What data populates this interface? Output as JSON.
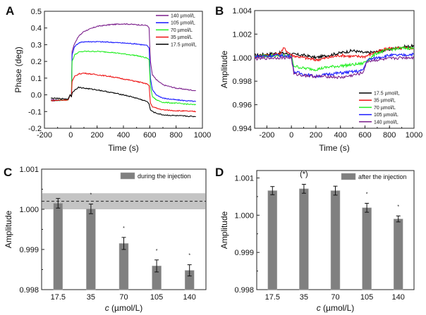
{
  "chart_data": [
    {
      "panel": "A",
      "type": "line",
      "xlabel": "Time (s)",
      "ylabel": "Phase (deg)",
      "xlim": [
        -200,
        1000
      ],
      "ylim": [
        -0.2,
        0.5
      ],
      "xticks": [
        -200,
        0,
        200,
        400,
        600,
        800,
        1000
      ],
      "yticks": [
        "-0.2",
        "-0.1",
        "0.0",
        "0.1",
        "0.2",
        "0.3",
        "0.4",
        "0.5"
      ],
      "legend_position": "top-right",
      "series": [
        {
          "name": "140 µmol/L",
          "color": "#7b1f8c",
          "x": [
            -150,
            -20,
            -5,
            5,
            10,
            30,
            60,
            100,
            200,
            300,
            400,
            500,
            580,
            595,
            605,
            620,
            650,
            700,
            800,
            950
          ],
          "y": [
            -0.03,
            -0.03,
            0.0,
            -0.01,
            0.26,
            0.31,
            0.35,
            0.38,
            0.41,
            0.42,
            0.425,
            0.42,
            0.415,
            0.4,
            0.2,
            0.12,
            0.09,
            0.06,
            0.04,
            0.025
          ]
        },
        {
          "name": "105 µmol/L",
          "color": "#1a1aff",
          "x": [
            -150,
            -20,
            -5,
            5,
            10,
            30,
            60,
            100,
            200,
            300,
            400,
            500,
            580,
            595,
            605,
            620,
            650,
            700,
            800,
            950
          ],
          "y": [
            -0.035,
            -0.03,
            0.0,
            -0.01,
            0.24,
            0.29,
            0.31,
            0.318,
            0.318,
            0.315,
            0.31,
            0.305,
            0.295,
            0.28,
            0.1,
            0.03,
            0.0,
            -0.02,
            -0.03,
            -0.04
          ]
        },
        {
          "name": "70 µmol/L",
          "color": "#22ee22",
          "x": [
            -150,
            -20,
            -5,
            5,
            10,
            30,
            60,
            100,
            200,
            300,
            400,
            500,
            580,
            595,
            605,
            620,
            650,
            700,
            800,
            950
          ],
          "y": [
            -0.035,
            -0.03,
            0.0,
            -0.01,
            0.2,
            0.24,
            0.255,
            0.26,
            0.26,
            0.255,
            0.245,
            0.235,
            0.22,
            0.21,
            0.05,
            -0.01,
            -0.03,
            -0.045,
            -0.05,
            -0.06
          ]
        },
        {
          "name": "35 µmol/L",
          "color": "#ee1111",
          "x": [
            -150,
            -20,
            -5,
            5,
            10,
            30,
            60,
            100,
            200,
            300,
            400,
            500,
            580,
            595,
            605,
            620,
            650,
            700,
            800,
            950
          ],
          "y": [
            -0.035,
            -0.03,
            0.0,
            -0.01,
            0.08,
            0.11,
            0.125,
            0.13,
            0.12,
            0.11,
            0.095,
            0.08,
            0.065,
            0.055,
            -0.05,
            -0.07,
            -0.08,
            -0.09,
            -0.095,
            -0.1
          ]
        },
        {
          "name": "17.5 µmol/L",
          "color": "#000000",
          "x": [
            -150,
            -20,
            -5,
            5,
            10,
            30,
            60,
            100,
            200,
            300,
            400,
            500,
            580,
            595,
            605,
            620,
            650,
            700,
            800,
            950
          ],
          "y": [
            -0.02,
            -0.025,
            0.0,
            -0.01,
            0.01,
            0.03,
            0.045,
            0.04,
            0.03,
            0.015,
            0.0,
            -0.02,
            -0.04,
            -0.055,
            -0.09,
            -0.1,
            -0.11,
            -0.12,
            -0.125,
            -0.13
          ]
        }
      ]
    },
    {
      "panel": "B",
      "type": "line",
      "xlabel": "Time (s)",
      "ylabel": "Amplitude",
      "xlim": [
        -300,
        1000
      ],
      "ylim": [
        0.994,
        1.004
      ],
      "xticks": [
        -200,
        0,
        200,
        400,
        600,
        800,
        1000
      ],
      "yticks": [
        "0.994",
        "0.996",
        "0.998",
        "1.000",
        "1.002",
        "1.004"
      ],
      "legend_position": "bottom-right",
      "series": [
        {
          "name": "17.5 µmol/L",
          "color": "#000000",
          "x": [
            -300,
            -100,
            0,
            100,
            200,
            300,
            400,
            500,
            600,
            700,
            800,
            900,
            1000
          ],
          "y": [
            1.0002,
            1.0004,
            1.0003,
            1.0002,
            1.0,
            1.0002,
            1.0004,
            1.0006,
            1.0004,
            1.0005,
            1.0007,
            1.0009,
            1.001
          ]
        },
        {
          "name": "35 µmol/L",
          "color": "#ee1111",
          "x": [
            -300,
            -100,
            -60,
            0,
            100,
            200,
            300,
            400,
            500,
            600,
            700,
            800,
            900,
            1000
          ],
          "y": [
            1.0001,
            1.0003,
            1.0008,
            1.0002,
            1.0,
            0.9998,
            1.0,
            1.0002,
            1.0001,
            1.0001,
            1.0005,
            1.0008,
            1.0008,
            1.0008
          ]
        },
        {
          "name": "70 µmol/L",
          "color": "#22ee22",
          "x": [
            -300,
            -100,
            0,
            20,
            100,
            200,
            300,
            400,
            500,
            580,
            620,
            700,
            800,
            900,
            1000
          ],
          "y": [
            1.0001,
            1.0002,
            1.0001,
            0.9993,
            0.9991,
            0.999,
            0.9992,
            0.9993,
            0.9994,
            0.9995,
            0.9998,
            1.0004,
            1.0007,
            1.0008,
            1.0008
          ]
        },
        {
          "name": "105 µmol/L",
          "color": "#1a1aff",
          "x": [
            -300,
            -100,
            0,
            20,
            100,
            200,
            300,
            400,
            500,
            580,
            620,
            700,
            800,
            900,
            1000
          ],
          "y": [
            1.0001,
            1.0002,
            1.0001,
            0.9988,
            0.9986,
            0.9984,
            0.9986,
            0.9987,
            0.9988,
            0.9989,
            0.9998,
            1.0,
            1.0002,
            1.0002,
            1.0003
          ]
        },
        {
          "name": "140 µmol/L",
          "color": "#7b1f8c",
          "x": [
            -300,
            -100,
            0,
            20,
            100,
            200,
            300,
            400,
            500,
            580,
            620,
            700,
            800,
            900,
            1000
          ],
          "y": [
            0.9999,
            1.0,
            1.0,
            0.9986,
            0.9985,
            0.9984,
            0.9984,
            0.9983,
            0.9985,
            0.9987,
            0.9997,
            0.9998,
            0.9999,
            1.0,
            1.0
          ]
        }
      ]
    },
    {
      "panel": "C",
      "type": "bar",
      "xlabel_italic": "c",
      "xlabel_rest": " (µmol/L)",
      "ylabel": "Amplitude",
      "categories": [
        "17.5",
        "35",
        "70",
        "105",
        "140"
      ],
      "values": [
        1.00015,
        1.00001,
        0.99915,
        0.99859,
        0.99848
      ],
      "errors": [
        0.00012,
        0.00012,
        0.00015,
        0.00015,
        0.00014
      ],
      "significance": [
        "",
        "*",
        "*",
        "*",
        "*"
      ],
      "ylim": [
        0.998,
        1.001
      ],
      "yticks": [
        "0.998",
        "0.999",
        "1.000",
        "1.001"
      ],
      "reference_line": 1.0002,
      "reference_band": [
        1.0,
        1.0004
      ],
      "legend": "during the injection",
      "legend_position": "top-right",
      "bar_color": "#808080"
    },
    {
      "panel": "D",
      "type": "bar",
      "xlabel_italic": "c",
      "xlabel_rest": " (µmol/L)",
      "ylabel": "Amplitude",
      "categories": [
        "17.5",
        "35",
        "70",
        "105",
        "140"
      ],
      "values": [
        1.00066,
        1.00071,
        1.00066,
        1.0002,
        0.9999
      ],
      "errors": [
        0.00011,
        0.00012,
        0.00012,
        0.00012,
        8e-05
      ],
      "significance": [
        "",
        "(*)",
        "",
        "*",
        "*"
      ],
      "ylim": [
        0.998,
        1.0012
      ],
      "yticks": [
        "0.998",
        "0.999",
        "1.000",
        "1.001"
      ],
      "legend": "after the injection",
      "legend_position": "top-right",
      "bar_color": "#808080"
    }
  ],
  "panel_labels": [
    "A",
    "B",
    "C",
    "D"
  ]
}
